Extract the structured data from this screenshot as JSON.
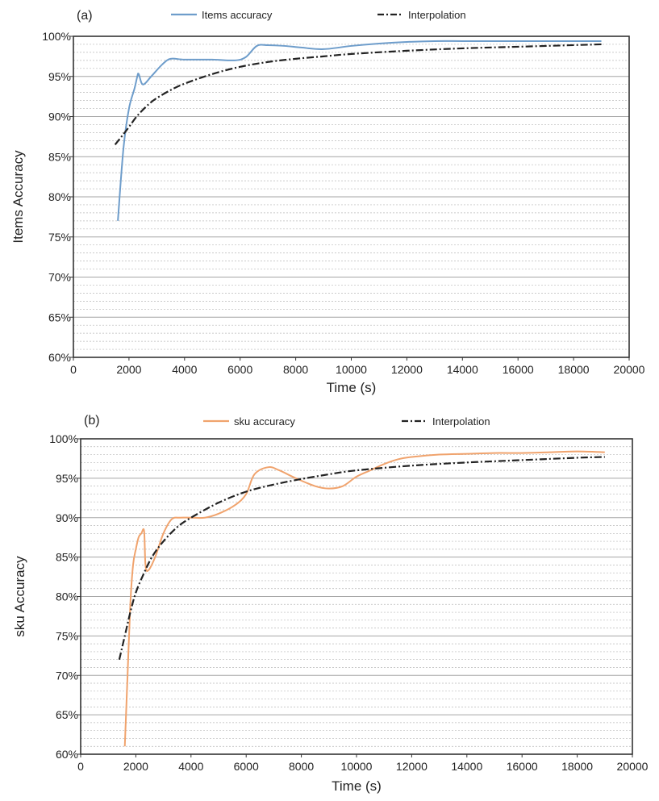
{
  "chart_data": [
    {
      "type": "line",
      "panel_label": "(a)",
      "title": "",
      "xlabel": "Time (s)",
      "ylabel": "Items Accuracy",
      "xlim": [
        0,
        20000
      ],
      "ylim": [
        60,
        100
      ],
      "x_ticks": [
        0,
        2000,
        4000,
        6000,
        8000,
        10000,
        12000,
        14000,
        16000,
        18000,
        20000
      ],
      "y_ticks": [
        60,
        65,
        70,
        75,
        80,
        85,
        90,
        95,
        100
      ],
      "y_tick_labels": [
        "60%",
        "65%",
        "70%",
        "75%",
        "80%",
        "85%",
        "90%",
        "95%",
        "100%"
      ],
      "grid": "horizontal major solid, minor dashed",
      "legend_position": "top",
      "series": [
        {
          "name": "Items accuracy",
          "color": "#6e9dcb",
          "style": "solid",
          "x": [
            1600,
            1800,
            2000,
            2200,
            2300,
            2350,
            2500,
            2800,
            3200,
            3500,
            4000,
            5000,
            5800,
            6200,
            6600,
            7000,
            7600,
            8200,
            9000,
            10000,
            11000,
            12000,
            13000,
            14000,
            15000,
            16000,
            17000,
            18000,
            19000
          ],
          "y": [
            77,
            86,
            91,
            93.5,
            95,
            95.3,
            94,
            95,
            96.5,
            97.2,
            97.1,
            97.1,
            97,
            97.4,
            98.8,
            98.9,
            98.8,
            98.6,
            98.4,
            98.8,
            99.1,
            99.3,
            99.4,
            99.4,
            99.4,
            99.4,
            99.4,
            99.4,
            99.4
          ]
        },
        {
          "name": "Interpolation",
          "color": "#222222",
          "style": "dash-dot",
          "x": [
            1500,
            1800,
            2000,
            2300,
            2700,
            3000,
            3500,
            4000,
            5000,
            6000,
            7000,
            8000,
            9000,
            10000,
            12000,
            14000,
            16000,
            18000,
            19000
          ],
          "y": [
            86.5,
            87.8,
            88.7,
            90.1,
            91.5,
            92.3,
            93.3,
            94.1,
            95.3,
            96.2,
            96.8,
            97.2,
            97.5,
            97.8,
            98.2,
            98.5,
            98.7,
            98.9,
            99.0
          ]
        }
      ]
    },
    {
      "type": "line",
      "panel_label": "(b)",
      "title": "",
      "xlabel": "Time (s)",
      "ylabel": "sku Accuracy",
      "xlim": [
        0,
        20000
      ],
      "ylim": [
        60,
        100
      ],
      "x_ticks": [
        0,
        2000,
        4000,
        6000,
        8000,
        10000,
        12000,
        14000,
        16000,
        18000,
        20000
      ],
      "y_ticks": [
        60,
        65,
        70,
        75,
        80,
        85,
        90,
        95,
        100
      ],
      "y_tick_labels": [
        "60%",
        "65%",
        "70%",
        "75%",
        "80%",
        "85%",
        "90%",
        "95%",
        "100%"
      ],
      "grid": "horizontal major solid, minor dashed",
      "legend_position": "top",
      "series": [
        {
          "name": "sku accuracy",
          "color": "#f0a36d",
          "style": "solid",
          "x": [
            1600,
            1700,
            1800,
            1900,
            2000,
            2100,
            2200,
            2300,
            2350,
            2450,
            2700,
            3000,
            3300,
            3600,
            4000,
            4500,
            5000,
            5600,
            6000,
            6300,
            6800,
            7200,
            7800,
            8500,
            9000,
            9500,
            10000,
            10500,
            11000,
            11500,
            12000,
            13000,
            14000,
            15000,
            16000,
            17000,
            18000,
            19000
          ],
          "y": [
            61,
            70,
            79,
            84,
            86,
            87.5,
            88,
            88.3,
            84,
            83.3,
            85,
            88,
            89.8,
            90,
            90,
            90,
            90.5,
            91.6,
            93,
            95.5,
            96.4,
            96,
            95,
            94,
            93.7,
            94,
            95.2,
            96,
            96.8,
            97.4,
            97.7,
            98,
            98.1,
            98.2,
            98.2,
            98.3,
            98.4,
            98.3
          ]
        },
        {
          "name": "Interpolation",
          "color": "#222222",
          "style": "dash-dot",
          "x": [
            1400,
            1600,
            1800,
            2000,
            2300,
            2600,
            3000,
            3500,
            4000,
            5000,
            6000,
            7000,
            8000,
            9000,
            10000,
            12000,
            14000,
            16000,
            18000,
            19000
          ],
          "y": [
            72,
            75,
            78,
            80.5,
            83,
            85.1,
            87,
            88.8,
            90,
            91.9,
            93.3,
            94.2,
            94.9,
            95.5,
            96,
            96.6,
            97,
            97.3,
            97.6,
            97.7
          ]
        }
      ]
    }
  ]
}
